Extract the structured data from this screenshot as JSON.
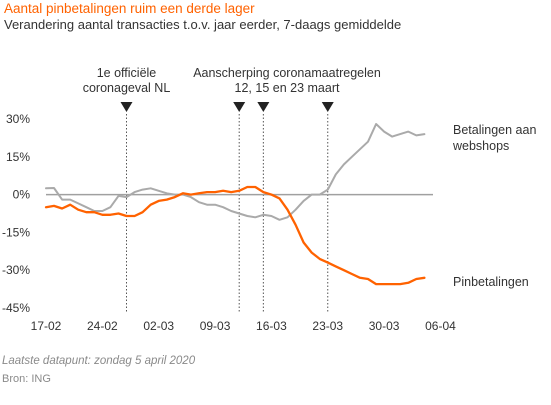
{
  "header": {
    "title": "Aantal pinbetalingen ruim een derde lager",
    "subtitle": "Verandering aantal transacties t.o.v. jaar eerder, 7-daags gemiddelde"
  },
  "footer": {
    "note": "Laatste datapunt: zondag 5  april 2020",
    "source": "Bron: ING"
  },
  "chart_data": {
    "type": "line",
    "x_start": "17-02",
    "x_end": "05-04",
    "x_tick_labels": [
      "17-02",
      "24-02",
      "02-03",
      "09-03",
      "16-03",
      "23-03",
      "30-03",
      "06-04"
    ],
    "y_tick_labels": [
      "30%",
      "15%",
      "0%",
      "-15%",
      "-30%",
      "-45%"
    ],
    "y_ticks": [
      30,
      15,
      0,
      -15,
      -30,
      -45
    ],
    "ylim": [
      -45,
      30
    ],
    "grid": false,
    "events": [
      {
        "lines": [
          "1e officiële",
          "coronageval NL"
        ],
        "markers": [
          "27-02"
        ]
      },
      {
        "lines": [
          "Aanscherping coronamaatregelen",
          "12, 15 en 23 maart"
        ],
        "markers": [
          "12-03",
          "15-03",
          "23-03"
        ]
      }
    ],
    "series": [
      {
        "name": "Betalingen aan webshops",
        "label_lines": [
          "Betalingen aan",
          "webshops"
        ],
        "color": "#aaaaaa",
        "values": [
          2.5,
          2.6,
          -2,
          -2,
          -3.5,
          -5,
          -6.5,
          -6.5,
          -5,
          -0.5,
          -1,
          1,
          2,
          2.5,
          1.5,
          0.5,
          0,
          0,
          -1,
          -3,
          -4,
          -4,
          -5,
          -6.5,
          -7.5,
          -8.5,
          -9,
          -8,
          -8.5,
          -10,
          -9,
          -6,
          -2.5,
          0,
          0,
          2,
          8,
          12,
          15,
          18,
          21,
          28,
          25,
          23,
          24,
          25,
          23.5,
          24
        ]
      },
      {
        "name": "Pinbetalingen",
        "label_lines": [
          "Pinbetalingen"
        ],
        "color": "#ff6200",
        "values": [
          -5,
          -4.5,
          -5.5,
          -4,
          -6,
          -7,
          -7,
          -8,
          -8,
          -7.5,
          -8.5,
          -8.5,
          -7,
          -4,
          -2.5,
          -2,
          -1,
          0.5,
          0,
          0.5,
          1,
          1,
          1.5,
          1,
          1.5,
          3,
          3,
          1,
          0,
          -1.5,
          -6,
          -12,
          -19,
          -23,
          -25.5,
          -27,
          -28.5,
          -30,
          -31.5,
          -33,
          -33.5,
          -35.5,
          -35.5,
          -35.5,
          -35.5,
          -35,
          -33.5,
          -33
        ]
      }
    ]
  }
}
